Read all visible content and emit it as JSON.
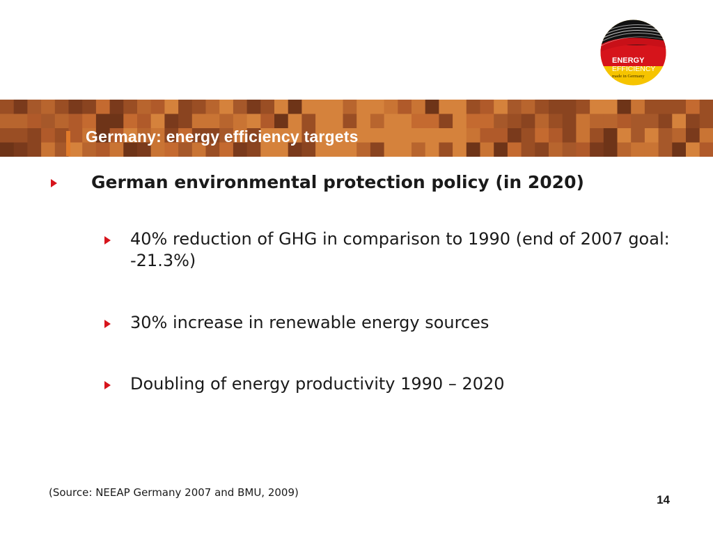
{
  "logo": {
    "line1": "ENERGY",
    "line2": "EFFICIENCY",
    "line3": "made in Germany"
  },
  "slide": {
    "title": "Germany: energy efficiency targets",
    "heading": "German environmental protection policy (in 2020)",
    "items": [
      "40% reduction of GHG in comparison to 1990 (end of 2007 goal: -21.3%)",
      "30% increase in renewable energy sources",
      "Doubling of energy productivity 1990 – 2020"
    ],
    "source": "(Source: NEEAP Germany 2007 and BMU, 2009)",
    "page_number": "14"
  },
  "colors": {
    "bullet": "#d7141c",
    "banner_text": "#ffffff"
  }
}
